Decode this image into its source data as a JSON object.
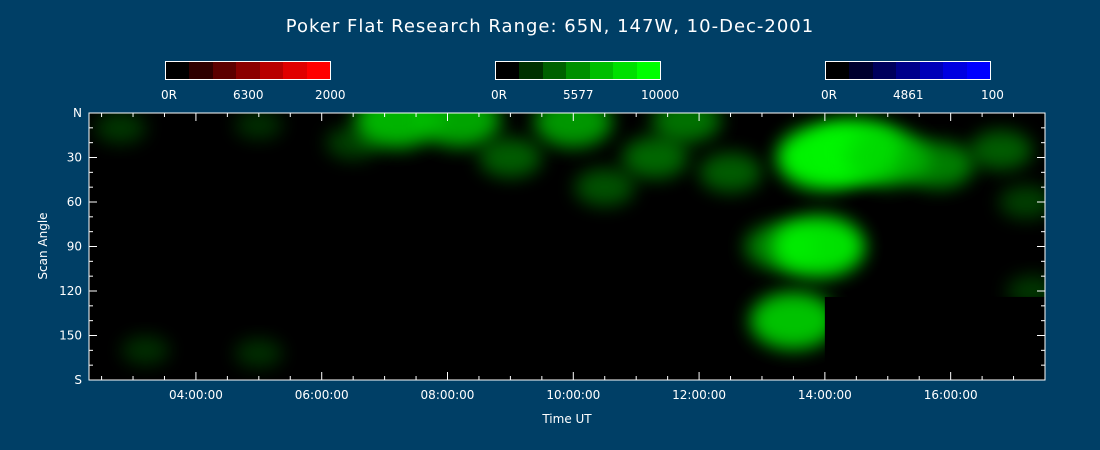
{
  "title": "Poker Flat Research Range: 65N, 147W, 10-Dec-2001",
  "colorbars": [
    {
      "name": "red-6300",
      "min_label": "0R",
      "mid_label": "6300",
      "max_label": "2000",
      "colors": [
        "#000000",
        "#2e0000",
        "#5c0000",
        "#8a0000",
        "#b80000",
        "#e00000",
        "#ff0000"
      ]
    },
    {
      "name": "green-5577",
      "min_label": "0R",
      "mid_label": "5577",
      "max_label": "10000",
      "colors": [
        "#000000",
        "#003000",
        "#006000",
        "#008f00",
        "#00be00",
        "#00e000",
        "#00ff00"
      ]
    },
    {
      "name": "blue-4861",
      "min_label": "0R",
      "mid_label": "4861",
      "max_label": "100",
      "colors": [
        "#000000",
        "#00002e",
        "#00005c",
        "#00008a",
        "#0000b8",
        "#0000e0",
        "#0000ff"
      ]
    }
  ],
  "chart_data": {
    "type": "heatmap",
    "title": "Poker Flat Research Range: 65N, 147W, 10-Dec-2001",
    "xlabel": "Time UT",
    "ylabel": "Scan Angle",
    "x_range_hours": [
      2.3,
      17.5
    ],
    "y_range": [
      0,
      180
    ],
    "x_ticks": [
      {
        "hour": 4,
        "label": "04:00:00"
      },
      {
        "hour": 6,
        "label": "06:00:00"
      },
      {
        "hour": 8,
        "label": "08:00:00"
      },
      {
        "hour": 10,
        "label": "10:00:00"
      },
      {
        "hour": 12,
        "label": "12:00:00"
      },
      {
        "hour": 14,
        "label": "14:00:00"
      },
      {
        "hour": 16,
        "label": "16:00:00"
      }
    ],
    "y_ticks": [
      {
        "angle": 0,
        "label": "N"
      },
      {
        "angle": 30,
        "label": "30"
      },
      {
        "angle": 60,
        "label": "60"
      },
      {
        "angle": 90,
        "label": "90"
      },
      {
        "angle": 120,
        "label": "120"
      },
      {
        "angle": 150,
        "label": "150"
      },
      {
        "angle": 180,
        "label": "S"
      }
    ],
    "colorscale": "green 5577",
    "intensity_points": [
      {
        "hour": 2.8,
        "angle": 10,
        "value": 0.25
      },
      {
        "hour": 5.0,
        "angle": 8,
        "value": 0.2
      },
      {
        "hour": 6.5,
        "angle": 20,
        "value": 0.3
      },
      {
        "hour": 7.2,
        "angle": 5,
        "value": 0.8
      },
      {
        "hour": 8.2,
        "angle": 5,
        "value": 0.75
      },
      {
        "hour": 9.0,
        "angle": 30,
        "value": 0.45
      },
      {
        "hour": 10.0,
        "angle": 6,
        "value": 0.7
      },
      {
        "hour": 10.5,
        "angle": 50,
        "value": 0.4
      },
      {
        "hour": 11.3,
        "angle": 30,
        "value": 0.5
      },
      {
        "hour": 11.8,
        "angle": 5,
        "value": 0.55
      },
      {
        "hour": 12.5,
        "angle": 40,
        "value": 0.45
      },
      {
        "hour": 13.3,
        "angle": 90,
        "value": 0.6
      },
      {
        "hour": 13.5,
        "angle": 140,
        "value": 0.85
      },
      {
        "hour": 13.9,
        "angle": 90,
        "value": 0.95
      },
      {
        "hour": 14.0,
        "angle": 30,
        "value": 1.0
      },
      {
        "hour": 14.5,
        "angle": 25,
        "value": 0.95
      },
      {
        "hour": 15.0,
        "angle": 30,
        "value": 0.8
      },
      {
        "hour": 15.8,
        "angle": 35,
        "value": 0.6
      },
      {
        "hour": 16.8,
        "angle": 25,
        "value": 0.45
      },
      {
        "hour": 17.2,
        "angle": 60,
        "value": 0.3
      },
      {
        "hour": 17.3,
        "angle": 120,
        "value": 0.25
      },
      {
        "hour": 3.2,
        "angle": 160,
        "value": 0.2
      },
      {
        "hour": 5.0,
        "angle": 162,
        "value": 0.2
      }
    ],
    "no_data_blocks": [
      {
        "hour_start": 6.0,
        "hour_end": 8.0,
        "angle_start": 160,
        "angle_end": 180
      },
      {
        "hour_start": 14.0,
        "hour_end": 17.5,
        "angle_start": 124,
        "angle_end": 180
      }
    ]
  }
}
